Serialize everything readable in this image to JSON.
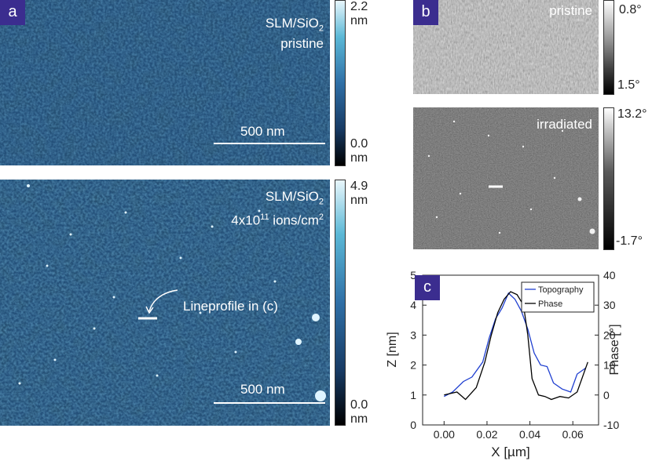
{
  "panel_a": {
    "tag": "a",
    "top": {
      "label_line1": "SLM/SiO",
      "label_line1_sub": "2",
      "label_line2": "pristine",
      "scalebar_label": "500 nm",
      "colorbar_max": "2.2",
      "colorbar_max_unit": "nm",
      "colorbar_min": "0.0",
      "colorbar_min_unit": "nm"
    },
    "bottom": {
      "label_line1": "SLM/SiO",
      "label_line1_sub": "2",
      "label_line2_pre": "4x10",
      "label_line2_sup1": "11",
      "label_line2_mid": " ions/cm",
      "label_line2_sup2": "2",
      "annotation": "Lineprofile in (c)",
      "scalebar_label": "500 nm",
      "colorbar_max": "4.9",
      "colorbar_max_unit": "nm",
      "colorbar_min": "0.0",
      "colorbar_min_unit": "nm"
    }
  },
  "panel_b": {
    "tag": "b",
    "top": {
      "label": "pristine",
      "colorbar_max": "0.8°",
      "colorbar_min": "1.5°"
    },
    "bottom": {
      "label": "irradiated",
      "colorbar_max": "13.2°",
      "colorbar_min": "-1.7°"
    }
  },
  "panel_c": {
    "tag": "c"
  },
  "colors": {
    "tag_bg": "#3b2d8f",
    "afm_blue": "#24507a",
    "topography": "#1f3fd0",
    "phase": "#000000"
  },
  "chart_data": {
    "type": "line",
    "title": "",
    "xlabel": "X [µm]",
    "ylabel": "Z [nm]",
    "y2label": "Phase [°]",
    "xlim": [
      -0.01,
      0.072
    ],
    "ylim": [
      0,
      5
    ],
    "y2lim": [
      -10,
      40
    ],
    "xticks": [
      0.0,
      0.02,
      0.04,
      0.06
    ],
    "xtick_labels": [
      "0.00",
      "0.02",
      "0.04",
      "0.06"
    ],
    "yticks": [
      0,
      1,
      2,
      3,
      4,
      5
    ],
    "ytick_labels": [
      "0",
      "1",
      "2",
      "3",
      "4",
      "5"
    ],
    "y2ticks": [
      -10,
      0,
      10,
      20,
      30,
      40
    ],
    "y2tick_labels": [
      "-10",
      "0",
      "10",
      "20",
      "30",
      "40"
    ],
    "legend_position": "top-right",
    "series": [
      {
        "name": "Topography",
        "axis": "left",
        "x": [
          0.0,
          0.004,
          0.009,
          0.013,
          0.018,
          0.021,
          0.024,
          0.027,
          0.03,
          0.033,
          0.036,
          0.039,
          0.042,
          0.045,
          0.048,
          0.051,
          0.055,
          0.059,
          0.062,
          0.066
        ],
        "y": [
          0.95,
          1.1,
          1.45,
          1.6,
          2.1,
          2.9,
          3.55,
          3.9,
          4.4,
          4.2,
          3.8,
          3.2,
          2.4,
          2.0,
          1.95,
          1.4,
          1.2,
          1.1,
          1.7,
          1.9
        ]
      },
      {
        "name": "Phase",
        "axis": "right",
        "x": [
          0.0,
          0.006,
          0.01,
          0.015,
          0.019,
          0.022,
          0.025,
          0.028,
          0.031,
          0.034,
          0.037,
          0.039,
          0.041,
          0.044,
          0.047,
          0.05,
          0.054,
          0.058,
          0.062,
          0.067
        ],
        "y": [
          0.0,
          1.0,
          -1.5,
          2.5,
          11.0,
          20.0,
          27.5,
          32.0,
          34.5,
          33.5,
          30.0,
          20.0,
          5.5,
          0.0,
          -0.5,
          -1.5,
          -0.5,
          -1.0,
          1.0,
          11.0
        ]
      }
    ]
  }
}
